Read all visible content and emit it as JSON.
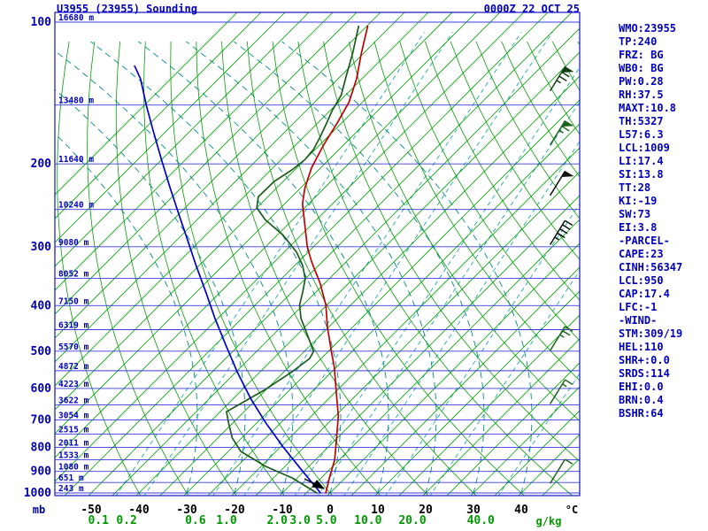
{
  "header": {
    "title": "U3955 (23955) Sounding",
    "datetime": "0000Z 22 OCT 25"
  },
  "side_panel": {
    "lines": [
      "WMO:23955",
      "TP:240",
      "FRZ: BG",
      "WB0: BG",
      "PW:0.28",
      "RH:37.5",
      "MAXT:10.8",
      "TH:5327",
      "L57:6.3",
      "LCL:1009",
      "LI:17.4",
      "SI:13.8",
      "TT:28",
      "KI:-19",
      "SW:73",
      "EI:3.8",
      "-PARCEL-",
      "CAPE:23",
      "CINH:56347",
      "LCL:950",
      "CAP:17.4",
      "LFC:-1",
      "-WIND-",
      "STM:309/19",
      "HEL:110",
      "SHR+:0.0",
      "SRDS:114",
      "EHI:0.0",
      "BRN:0.4",
      "BSHR:64"
    ]
  },
  "chart_data": {
    "type": "line",
    "chart_kind": "skew-t log-p atmospheric sounding",
    "title": "U3955 (23955) Sounding",
    "subtitle": "0000Z 22 OCT 25",
    "pressure_axis": {
      "unit": "mb",
      "ticks": [
        100,
        200,
        300,
        400,
        500,
        600,
        700,
        800,
        900,
        1000
      ],
      "levels": [
        100,
        150,
        200,
        250,
        300,
        350,
        400,
        450,
        500,
        550,
        600,
        650,
        700,
        750,
        800,
        850,
        900,
        950,
        1000
      ],
      "range": [
        100,
        1050
      ],
      "scale": "log"
    },
    "height_labels": [
      "16680 m",
      "13480 m",
      "11640 m",
      "10240 m",
      "9080 m",
      "8052 m",
      "7150 m",
      "6319 m",
      "5570 m",
      "4872 m",
      "4223 m",
      "3622 m",
      "3054 m",
      "2515 m",
      "2011 m",
      "1533 m",
      "1080 m",
      "651 m",
      "243 m"
    ],
    "temp_axis": {
      "unit": "°C",
      "ticks": [
        -50,
        -40,
        -30,
        -20,
        -10,
        0,
        10,
        20,
        30,
        40
      ]
    },
    "mixing_ratio": {
      "unit": "g/kg",
      "values": [
        0.1,
        0.2,
        0.6,
        1.0,
        2.0,
        3.0,
        5.0,
        10.0,
        20.0,
        40.0
      ],
      "t_at_1000mb": [
        -44.4,
        -38.5,
        -24.1,
        -17.6,
        -7.0,
        -2.2,
        3.3,
        12.0,
        21.3,
        35.6
      ]
    },
    "isotherm_step_c": 5,
    "series": [
      {
        "name": "temperature",
        "color": "#c00000",
        "points": [
          [
            1000,
            -0.9
          ],
          [
            929,
            -3.3
          ],
          [
            852,
            -5.9
          ],
          [
            781,
            -9.3
          ],
          [
            686,
            -14.4
          ],
          [
            603,
            -20.4
          ],
          [
            541,
            -25.4
          ],
          [
            500,
            -29.4
          ],
          [
            445,
            -35.2
          ],
          [
            399,
            -40.2
          ],
          [
            359,
            -45.9
          ],
          [
            322,
            -52.4
          ],
          [
            300,
            -56.3
          ],
          [
            270,
            -61.3
          ],
          [
            243,
            -66.3
          ],
          [
            225,
            -69.1
          ],
          [
            204,
            -71.9
          ],
          [
            183,
            -74.1
          ],
          [
            164,
            -75.9
          ],
          [
            148,
            -77.8
          ],
          [
            132,
            -81.1
          ],
          [
            116,
            -85.6
          ],
          [
            102,
            -89.8
          ]
        ]
      },
      {
        "name": "dewpoint",
        "color": "#1a5c1a",
        "points": [
          [
            1000,
            -2.8
          ],
          [
            929,
            -11.1
          ],
          [
            878,
            -19.1
          ],
          [
            816,
            -27.4
          ],
          [
            764,
            -32.0
          ],
          [
            710,
            -35.9
          ],
          [
            672,
            -38.7
          ],
          [
            603,
            -35.2
          ],
          [
            553,
            -33.3
          ],
          [
            518,
            -32.4
          ],
          [
            500,
            -33.1
          ],
          [
            465,
            -37.4
          ],
          [
            426,
            -42.6
          ],
          [
            399,
            -45.7
          ],
          [
            374,
            -47.8
          ],
          [
            351,
            -50.0
          ],
          [
            329,
            -53.3
          ],
          [
            308,
            -57.4
          ],
          [
            283,
            -63.9
          ],
          [
            263,
            -70.7
          ],
          [
            248,
            -75.0
          ],
          [
            235,
            -77.0
          ],
          [
            218,
            -76.9
          ],
          [
            206,
            -75.6
          ],
          [
            196,
            -75.0
          ],
          [
            186,
            -75.4
          ],
          [
            176,
            -76.5
          ],
          [
            164,
            -78.1
          ],
          [
            154,
            -79.6
          ],
          [
            143,
            -80.9
          ],
          [
            130,
            -83.9
          ],
          [
            116,
            -87.4
          ],
          [
            102,
            -91.7
          ]
        ]
      },
      {
        "name": "wet-bulb",
        "color": "#0000cc",
        "points": [
          [
            1000,
            -2.0
          ],
          [
            890,
            -11.1
          ],
          [
            799,
            -19.4
          ],
          [
            710,
            -28.1
          ],
          [
            629,
            -36.5
          ],
          [
            553,
            -44.8
          ],
          [
            485,
            -52.8
          ],
          [
            426,
            -60.6
          ],
          [
            374,
            -68.1
          ],
          [
            329,
            -75.6
          ],
          [
            289,
            -83.0
          ],
          [
            254,
            -90.4
          ],
          [
            223,
            -97.8
          ],
          [
            196,
            -105.0
          ],
          [
            172,
            -112.2
          ],
          [
            151,
            -119.3
          ],
          [
            132,
            -126.3
          ],
          [
            124,
            -130.2
          ]
        ]
      }
    ],
    "wind_barbs": [
      {
        "pressure": 132,
        "speed_kt": 75,
        "color": "#123c12"
      },
      {
        "pressure": 172,
        "speed_kt": 65,
        "color": "#1c641c"
      },
      {
        "pressure": 220,
        "speed_kt": 50,
        "color": "#111111"
      },
      {
        "pressure": 280,
        "speed_kt": 45,
        "color": "#111111"
      },
      {
        "pressure": 470,
        "speed_kt": 25,
        "color": "#1c641c"
      },
      {
        "pressure": 610,
        "speed_kt": 15,
        "color": "#1c641c"
      },
      {
        "pressure": 900,
        "speed_kt": 10,
        "color": "#1c641c"
      }
    ],
    "style": {
      "frame": "#2222cc",
      "isobar": "#3a3ae0",
      "isotherm": "#00a000",
      "dry_adiabat": "#00a000",
      "moist_adiabat": "#008b8b",
      "mixing_line": "#00a3a3",
      "label_blue": "#0000bb",
      "label_black": "#000000",
      "label_green": "#009900"
    }
  }
}
